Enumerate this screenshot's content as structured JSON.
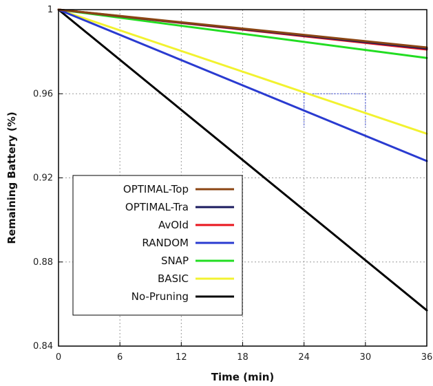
{
  "chart_data": {
    "type": "line",
    "title": "",
    "xlabel": "Time (min)",
    "ylabel": "Remaining Battery (%)",
    "xlim": [
      0,
      36
    ],
    "ylim": [
      0.84,
      1.0
    ],
    "xticks": [
      "0",
      "6",
      "12",
      "18",
      "24",
      "30",
      "36"
    ],
    "yticks": [
      "0.84",
      "0.88",
      "0.92",
      "0.96",
      "1"
    ],
    "grid": true,
    "legend_position": "bottom-left",
    "x": [
      0,
      36
    ],
    "series": [
      {
        "name": "OPTIMAL-Top",
        "color": "#8B4513",
        "values": [
          1.0,
          0.982
        ]
      },
      {
        "name": "OPTIMAL-Tra",
        "color": "#1a1a5e",
        "values": [
          1.0,
          0.9815
        ]
      },
      {
        "name": "AvOId",
        "color": "#e8141c",
        "values": [
          1.0,
          0.981
        ]
      },
      {
        "name": "RANDOM",
        "color": "#2a3bd0",
        "values": [
          1.0,
          0.928
        ]
      },
      {
        "name": "SNAP",
        "color": "#22dd22",
        "values": [
          1.0,
          0.977
        ]
      },
      {
        "name": "BASIC",
        "color": "#f2f230",
        "values": [
          1.0,
          0.941
        ]
      },
      {
        "name": "No-Pruning",
        "color": "#000000",
        "values": [
          1.0,
          0.857
        ]
      }
    ]
  }
}
